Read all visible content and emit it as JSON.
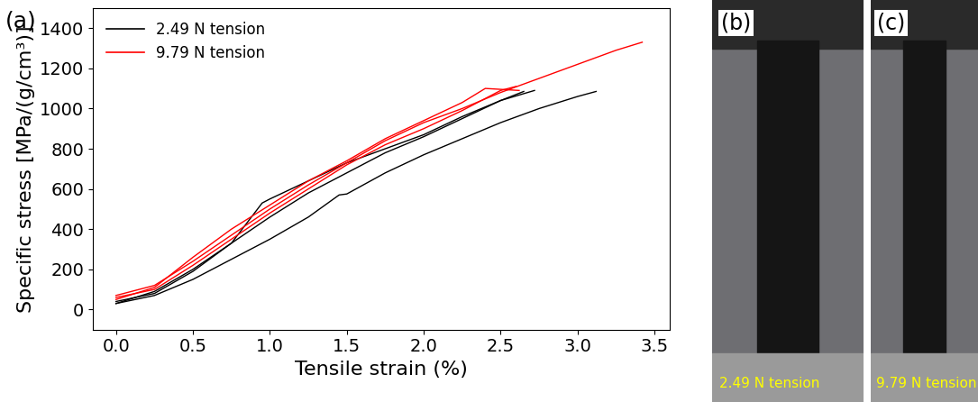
{
  "chart_data": {
    "type": "line",
    "panel_label": "(a)",
    "x_label": "Tensile strain (%)",
    "y_label": "Specific stress [MPa/(g/cm³)]",
    "xlim": [
      -0.15,
      3.6
    ],
    "xticks": [
      {
        "value": 0,
        "label": "0.0"
      },
      {
        "value": 0.5,
        "label": "0.5"
      },
      {
        "value": 1,
        "label": "1.0"
      },
      {
        "value": 1.5,
        "label": "1.5"
      },
      {
        "value": 2,
        "label": "2.0"
      },
      {
        "value": 2.5,
        "label": "2.5"
      },
      {
        "value": 3,
        "label": "3.0"
      },
      {
        "value": 3.5,
        "label": "3.5"
      }
    ],
    "ylim": [
      -100,
      1500
    ],
    "yticks": [
      0,
      200,
      400,
      600,
      800,
      1000,
      1200,
      1400
    ],
    "legend": "upper left",
    "grid": false,
    "series": [
      {
        "name": "2.49 N tension",
        "color": "#000000",
        "curves": [
          {
            "x": [
              0,
              0.25,
              0.5,
              0.75,
              1.0,
              1.25,
              1.45,
              1.5,
              1.75,
              2.0,
              2.25,
              2.5,
              2.75,
              3.0,
              3.12
            ],
            "values": [
              30,
              70,
              150,
              250,
              350,
              460,
              570,
              575,
              680,
              770,
              850,
              930,
              1000,
              1060,
              1085
            ]
          },
          {
            "x": [
              0,
              0.25,
              0.5,
              0.75,
              0.95,
              1.0,
              1.25,
              1.5,
              1.75,
              2.0,
              2.25,
              2.5,
              2.72
            ],
            "values": [
              40,
              80,
              190,
              330,
              530,
              550,
              640,
              730,
              800,
              870,
              960,
              1040,
              1090
            ]
          },
          {
            "x": [
              0,
              0.25,
              0.5,
              0.75,
              1.0,
              1.25,
              1.5,
              1.75,
              2.0,
              2.25,
              2.5,
              2.65
            ],
            "values": [
              30,
              90,
              200,
              330,
              460,
              580,
              680,
              780,
              860,
              950,
              1040,
              1085
            ]
          }
        ]
      },
      {
        "name": "9.79 N tension",
        "color": "#ff0000",
        "curves": [
          {
            "x": [
              0,
              0.25,
              0.5,
              0.75,
              1.0,
              1.25,
              1.5,
              1.75,
              2.0,
              2.25,
              2.5,
              2.75,
              3.0,
              3.25,
              3.42
            ],
            "values": [
              70,
              120,
              240,
              370,
              500,
              620,
              730,
              840,
              930,
              1000,
              1080,
              1150,
              1220,
              1290,
              1330
            ]
          },
          {
            "x": [
              0,
              0.25,
              0.5,
              0.75,
              1.0,
              1.25,
              1.5,
              1.75,
              2.0,
              2.25,
              2.4,
              2.62
            ],
            "values": [
              50,
              110,
              260,
              400,
              520,
              640,
              740,
              850,
              940,
              1030,
              1100,
              1090
            ]
          },
          {
            "x": [
              0,
              0.25,
              0.5,
              0.75,
              1.0,
              1.25,
              1.5,
              1.75,
              2.0,
              2.25,
              2.5,
              2.6
            ],
            "values": [
              60,
              100,
              220,
              350,
              480,
              600,
              720,
              820,
              900,
              990,
              1090,
              1110
            ]
          }
        ]
      }
    ]
  },
  "photos": [
    {
      "panel_label": "(b)",
      "caption": "2.49 N tension"
    },
    {
      "panel_label": "(c)",
      "caption": "9.79 N tension"
    }
  ]
}
